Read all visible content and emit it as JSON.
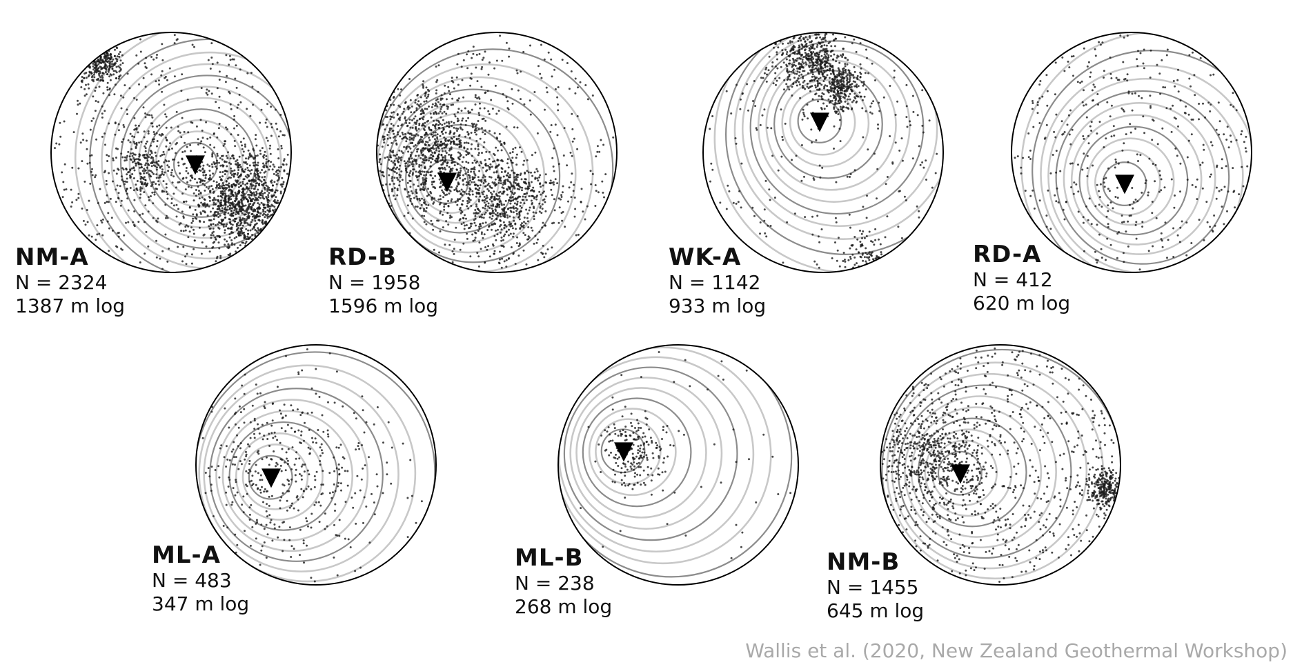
{
  "panels": [
    {
      "name": "NM-A",
      "n_label": "N = 2324",
      "log_label": "1387 m log"
    },
    {
      "name": "RD-B",
      "n_label": "N = 1958",
      "log_label": "1596 m log"
    },
    {
      "name": "WK-A",
      "n_label": "N = 1142",
      "log_label": "933 m log"
    },
    {
      "name": "RD-A",
      "n_label": "N = 412",
      "log_label": "620 m log"
    },
    {
      "name": "ML-A",
      "n_label": "N = 483",
      "log_label": "347 m log"
    },
    {
      "name": "ML-B",
      "n_label": "N = 238",
      "log_label": "268 m log"
    },
    {
      "name": "NM-B",
      "n_label": "N = 1455",
      "log_label": "645 m log"
    }
  ],
  "credit": "Wallis et al. (2020, New Zealand Geothermal Workshop)",
  "colors": {
    "outline": "#000000",
    "contour_dark": "#8c8c8c",
    "contour_light": "#c8c8c8",
    "points": "#1a1a1a",
    "marker": "#000000",
    "credit": "#a9a9a9"
  }
}
